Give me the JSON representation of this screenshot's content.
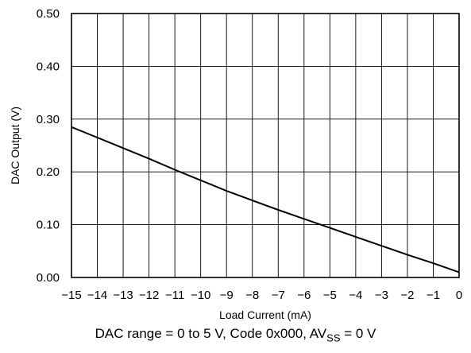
{
  "chart_data": {
    "type": "line",
    "xlabel": "Load Current (mA)",
    "ylabel": "DAC Output (V)",
    "xlim": [
      -15,
      0
    ],
    "ylim": [
      0,
      0.5
    ],
    "grid": true,
    "x_ticks": [
      -15,
      -14,
      -13,
      -12,
      -11,
      -10,
      -9,
      -8,
      -7,
      -6,
      -5,
      -4,
      -3,
      -2,
      -1,
      0
    ],
    "x_tick_labels": [
      "−15",
      "−14",
      "−13",
      "−12",
      "−11",
      "−10",
      "−9",
      "−8",
      "−7",
      "−6",
      "−5",
      "−4",
      "−3",
      "−2",
      "−1",
      "0"
    ],
    "y_ticks": [
      0,
      0.1,
      0.2,
      0.3,
      0.4,
      0.5
    ],
    "y_tick_labels": [
      "0.00",
      "0.10",
      "0.20",
      "0.30",
      "0.40",
      "0.50"
    ],
    "series": [
      {
        "x": [
          -15,
          -14,
          -13,
          -12,
          -11,
          -10,
          -9,
          -8,
          -7,
          -6,
          -5,
          -4,
          -3,
          -2,
          -1,
          0
        ],
        "y": [
          0.285,
          0.265,
          0.245,
          0.225,
          0.204,
          0.184,
          0.164,
          0.146,
          0.128,
          0.111,
          0.094,
          0.077,
          0.06,
          0.043,
          0.027,
          0.01
        ]
      }
    ]
  },
  "caption": {
    "prefix": "DAC range = 0 to 5 V, Code 0x000, AV",
    "sub": "SS",
    "suffix": " = 0 V"
  },
  "colors": {
    "line": "#000000",
    "grid": "#000000",
    "text": "#000000"
  }
}
